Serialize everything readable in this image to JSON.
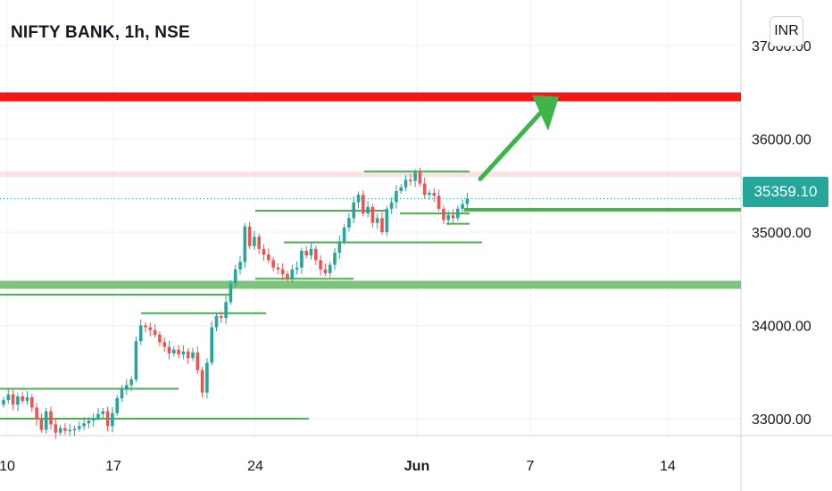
{
  "header": {
    "symbol_title": "NIFTY BANK, 1h, NSE",
    "currency_button": "INR"
  },
  "last_price": "35359.10",
  "colors": {
    "up": "#26a69a",
    "down": "#ef5350",
    "resistance": "#f01818",
    "support_zone": "#7cc47c",
    "level_line": "#4caf50",
    "arrow": "#3cb54a",
    "grid": "#eef0f3"
  },
  "chart_data": {
    "type": "candlestick",
    "x_ticks": [
      "10",
      "17",
      "24",
      "Jun",
      "7",
      "14"
    ],
    "y_ticks": [
      "37000.00",
      "36000.00",
      "35000.00",
      "34000.00",
      "33000.00"
    ],
    "ylim": [
      32800,
      37250
    ],
    "grid": true,
    "horizontal_levels": [
      {
        "kind": "resistance-band",
        "value": 36450
      },
      {
        "kind": "faint-band",
        "value": 35620
      },
      {
        "kind": "support-line",
        "value": 35240
      },
      {
        "kind": "support-band",
        "value": 34440
      }
    ],
    "trend_arrow": {
      "from_value": 35570,
      "to_value": 36450,
      "direction": "up"
    },
    "candle_closes": [
      33200,
      33260,
      33150,
      33240,
      33190,
      33230,
      33120,
      32990,
      32880,
      33080,
      32940,
      32850,
      32900,
      32870,
      32880,
      32890,
      32920,
      32950,
      32980,
      33010,
      33050,
      33080,
      32920,
      33060,
      33220,
      33310,
      33360,
      33420,
      33830,
      34000,
      33980,
      33950,
      33900,
      33820,
      33770,
      33700,
      33740,
      33690,
      33720,
      33650,
      33710,
      33520,
      33280,
      33600,
      33980,
      34100,
      34080,
      34250,
      34450,
      34600,
      34680,
      35060,
      34850,
      34950,
      34820,
      34760,
      34700,
      34620,
      34600,
      34550,
      34500,
      34600,
      34620,
      34800,
      34750,
      34820,
      34700,
      34600,
      34560,
      34650,
      34780,
      34900,
      35050,
      35150,
      35320,
      35400,
      35200,
      35270,
      35100,
      35150,
      35000,
      35250,
      35320,
      35440,
      35480,
      35560,
      35550,
      35640,
      35520,
      35400,
      35420,
      35390,
      35250,
      35130,
      35180,
      35150,
      35250,
      35300,
      35359
    ]
  }
}
